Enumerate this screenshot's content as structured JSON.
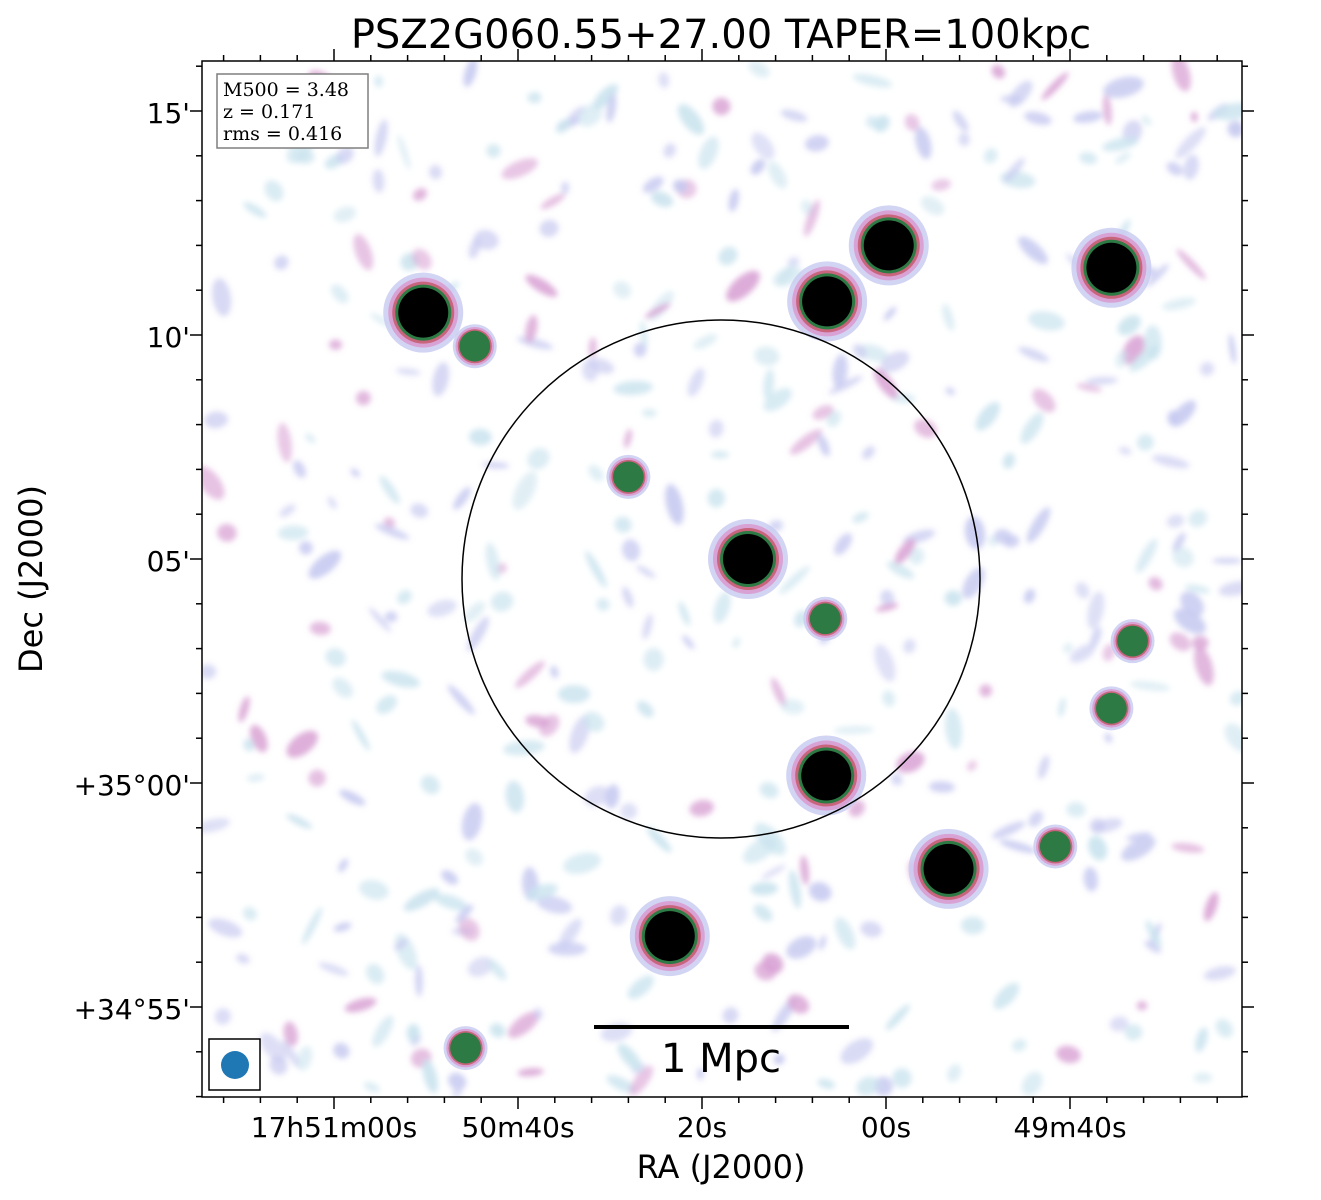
{
  "title": "PSZ2G060.55+27.00 TAPER=100kpc",
  "axes": {
    "xlabel": "RA (J2000)",
    "ylabel": "Dec (J2000)",
    "x_ticks": [
      {
        "label": "17h51m00s",
        "ra": "17h51m00s"
      },
      {
        "label": "50m40s",
        "ra": "17h50m40s"
      },
      {
        "label": "20s",
        "ra": "17h50m20s"
      },
      {
        "label": "00s",
        "ra": "17h50m00s"
      },
      {
        "label": "49m40s",
        "ra": "17h49m40s"
      }
    ],
    "y_ticks": [
      {
        "label": "15'",
        "dec": "+35°15'"
      },
      {
        "label": "10'",
        "dec": "+35°10'"
      },
      {
        "label": "05'",
        "dec": "+35°05'"
      },
      {
        "label": "+35°00'",
        "dec": "+35°00'"
      },
      {
        "label": "+34°55'",
        "dec": "+34°55'"
      }
    ]
  },
  "info_box": {
    "line1": "M500 = 3.48",
    "line2": "z = 0.171",
    "line3": "rms = 0.416"
  },
  "scale_bar": {
    "label": "1 Mpc"
  },
  "colors": {
    "faint_emission": "#c9e3ee",
    "low_emission": "#c7c9f0",
    "mid_emission": "#d9a2d4",
    "high_emission": "#c8657c",
    "very_high_emission": "#2d7a44",
    "peak_emission": "#000000",
    "beam": "#1f77b4",
    "circle": "#000000"
  },
  "sources": {
    "bright": [
      {
        "ra": "17h50m50.3s",
        "dec": "+35°10'30\""
      },
      {
        "ra": "17h50m15.0s",
        "dec": "+35°05'00\""
      },
      {
        "ra": "17h50m06.4s",
        "dec": "+35°10'45\""
      },
      {
        "ra": "17h49m59.7s",
        "dec": "+35°12'00\""
      },
      {
        "ra": "17h49m35.5s",
        "dec": "+35°11'30\""
      },
      {
        "ra": "17h50m06.5s",
        "dec": "+35°00'10\""
      },
      {
        "ra": "17h49m53.2s",
        "dec": "+34°58'05\""
      },
      {
        "ra": "17h50m23.5s",
        "dec": "+34°56'35\""
      }
    ],
    "medium": [
      {
        "ra": "17h50m44.7s",
        "dec": "+35°09'45\""
      },
      {
        "ra": "17h50m28.0s",
        "dec": "+35°06'50\""
      },
      {
        "ra": "17h50m06.6s",
        "dec": "+35°03'40\""
      },
      {
        "ra": "17h49m41.6s",
        "dec": "+34°58'35\""
      },
      {
        "ra": "17h50m45.7s",
        "dec": "+34°54'05\""
      },
      {
        "ra": "17h49m35.5s",
        "dec": "+35°01'40\""
      },
      {
        "ra": "17h49m33.2s",
        "dec": "+35°03'10\""
      }
    ]
  }
}
